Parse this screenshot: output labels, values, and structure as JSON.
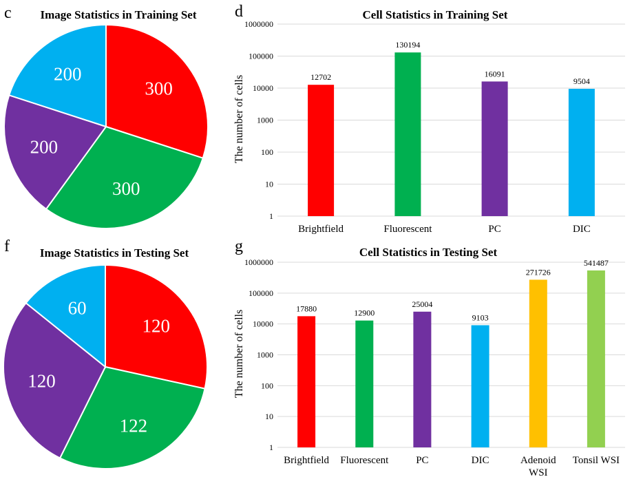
{
  "colors": {
    "red": "#ff0000",
    "green": "#00b050",
    "purple": "#7030a0",
    "blue": "#00b0f0",
    "orange": "#ffc000",
    "lightgreen": "#92d050"
  },
  "chart_data": [
    {
      "panel": "c",
      "type": "pie",
      "title": "Image Statistics in Training Set",
      "slices": [
        {
          "label": "300",
          "value": 300,
          "color": "#ff0000"
        },
        {
          "label": "300",
          "value": 300,
          "color": "#00b050"
        },
        {
          "label": "200",
          "value": 200,
          "color": "#7030a0"
        },
        {
          "label": "200",
          "value": 200,
          "color": "#00b0f0"
        }
      ]
    },
    {
      "panel": "d",
      "type": "bar",
      "title": "Cell Statistics in Training Set",
      "ylabel": "The number of cells",
      "yscale": "log",
      "ylim": [
        1,
        1000000
      ],
      "yticks": [
        "1",
        "10",
        "100",
        "1000",
        "10000",
        "100000",
        "1000000"
      ],
      "categories": [
        "Brightfield",
        "Fluorescent",
        "PC",
        "DIC"
      ],
      "values": [
        12702,
        130194,
        16091,
        9504
      ],
      "colors": [
        "#ff0000",
        "#00b050",
        "#7030a0",
        "#00b0f0"
      ],
      "grid": true
    },
    {
      "panel": "f",
      "type": "pie",
      "title": "Image Statistics in Testing Set",
      "slices": [
        {
          "label": "120",
          "value": 120,
          "color": "#ff0000"
        },
        {
          "label": "122",
          "value": 122,
          "color": "#00b050"
        },
        {
          "label": "120",
          "value": 120,
          "color": "#7030a0"
        },
        {
          "label": "60",
          "value": 60,
          "color": "#00b0f0"
        }
      ]
    },
    {
      "panel": "g",
      "type": "bar",
      "title": "Cell Statistics in Testing Set",
      "ylabel": "The number of cells",
      "yscale": "log",
      "ylim": [
        1,
        1000000
      ],
      "yticks": [
        "1",
        "10",
        "100",
        "1000",
        "10000",
        "100000",
        "1000000"
      ],
      "categories": [
        "Brightfield",
        "Fluorescent",
        "PC",
        "DIC",
        "Adenoid WSI",
        "Tonsil WSI"
      ],
      "category_lines": [
        [
          "Brightfield"
        ],
        [
          "Fluorescent"
        ],
        [
          "PC"
        ],
        [
          "DIC"
        ],
        [
          "Adenoid",
          "WSI"
        ],
        [
          "Tonsil WSI"
        ]
      ],
      "values": [
        17880,
        12900,
        25004,
        9103,
        271726,
        541487
      ],
      "colors": [
        "#ff0000",
        "#00b050",
        "#7030a0",
        "#00b0f0",
        "#ffc000",
        "#92d050"
      ],
      "grid": true
    }
  ]
}
